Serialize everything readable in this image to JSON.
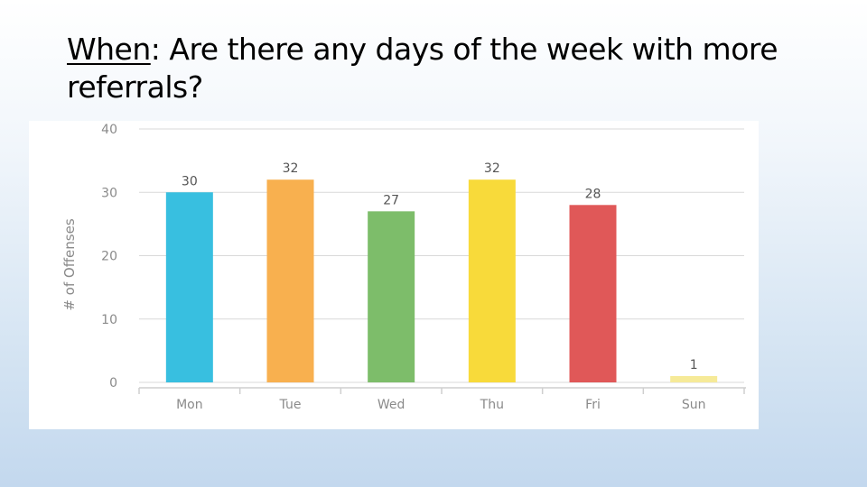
{
  "slide": {
    "title_keyword": "When",
    "title_rest": ":  Are there any days of the week with more referrals?"
  },
  "chart_data": {
    "type": "bar",
    "title": "",
    "xlabel": "",
    "ylabel": "# of Offenses",
    "categories": [
      "Mon",
      "Tue",
      "Wed",
      "Thu",
      "Fri",
      "Sun"
    ],
    "values": [
      30,
      32,
      27,
      32,
      28,
      1
    ],
    "colors": [
      "#38bfe0",
      "#f8b04f",
      "#7dbd6a",
      "#f8da3a",
      "#e05858",
      "#f6ea98"
    ],
    "ylim": [
      0,
      40
    ],
    "yticks": [
      0,
      10,
      20,
      30,
      40
    ],
    "grid": true,
    "legend": "none",
    "data_labels": true
  }
}
